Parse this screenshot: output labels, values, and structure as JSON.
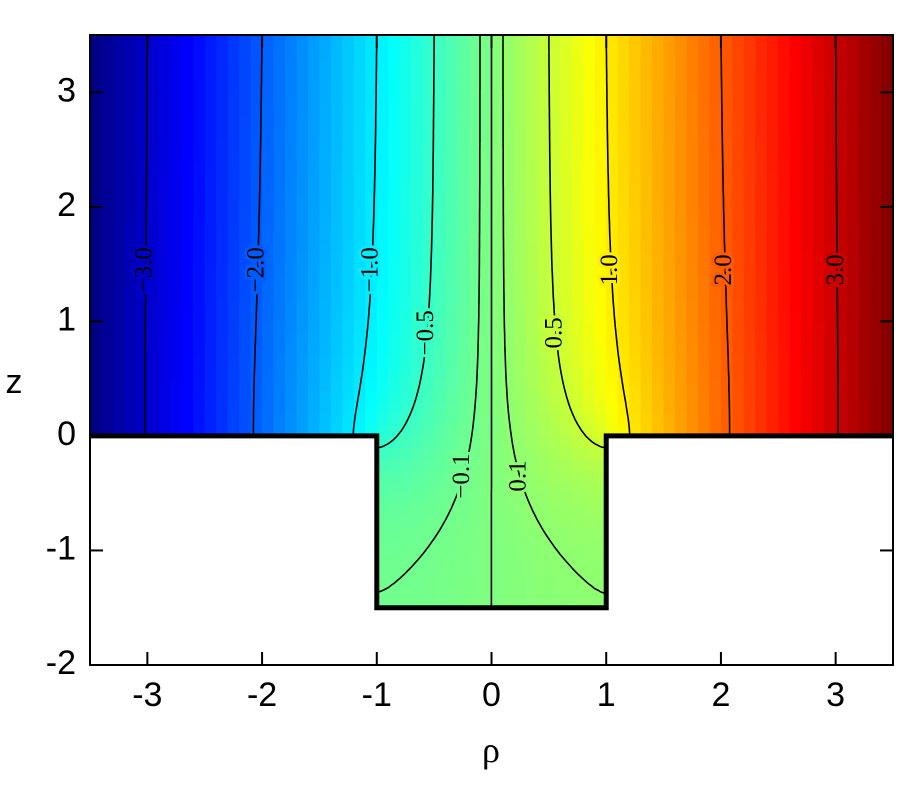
{
  "chart_data": {
    "type": "contour",
    "x_label": "ρ",
    "y_label": "z",
    "xlim": [
      -3.5,
      3.5
    ],
    "ylim": [
      -2,
      3.5
    ],
    "xticks": [
      -3,
      -2,
      -1,
      0,
      1,
      2,
      3
    ],
    "yticks": [
      -2,
      -1,
      0,
      1,
      2,
      3
    ],
    "values": [
      -3,
      -2,
      -1,
      -0.5,
      -0.1,
      0,
      0.1,
      0.5,
      1,
      2,
      3
    ],
    "value_labels": [
      "−3.0",
      "−2.0",
      "−1.0",
      "−0.5",
      "−0.1",
      null,
      "0.1",
      "0.5",
      "1.0",
      "2.0",
      "3.0"
    ],
    "colormap": "jet",
    "line_color": "#000000"
  }
}
